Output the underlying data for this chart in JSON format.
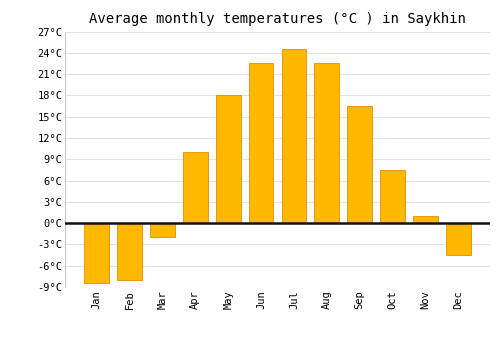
{
  "title": "Average monthly temperatures (°C ) in Saykhin",
  "months": [
    "Jan",
    "Feb",
    "Mar",
    "Apr",
    "May",
    "Jun",
    "Jul",
    "Aug",
    "Sep",
    "Oct",
    "Nov",
    "Dec"
  ],
  "temperatures": [
    -8.5,
    -8.0,
    -2.0,
    10.0,
    18.0,
    22.5,
    24.5,
    22.5,
    16.5,
    7.5,
    1.0,
    -4.5
  ],
  "bar_color_top": "#FFB800",
  "bar_color_bottom": "#FFA500",
  "bar_edge_color": "#E09000",
  "ylim_min": -9,
  "ylim_max": 27,
  "yticks": [
    -9,
    -6,
    -3,
    0,
    3,
    6,
    9,
    12,
    15,
    18,
    21,
    24,
    27
  ],
  "background_color": "#FFFFFF",
  "grid_color": "#DDDDDD",
  "zero_line_color": "#111111",
  "title_fontsize": 10,
  "tick_fontsize": 7.5,
  "font_family": "monospace",
  "bar_width": 0.75
}
